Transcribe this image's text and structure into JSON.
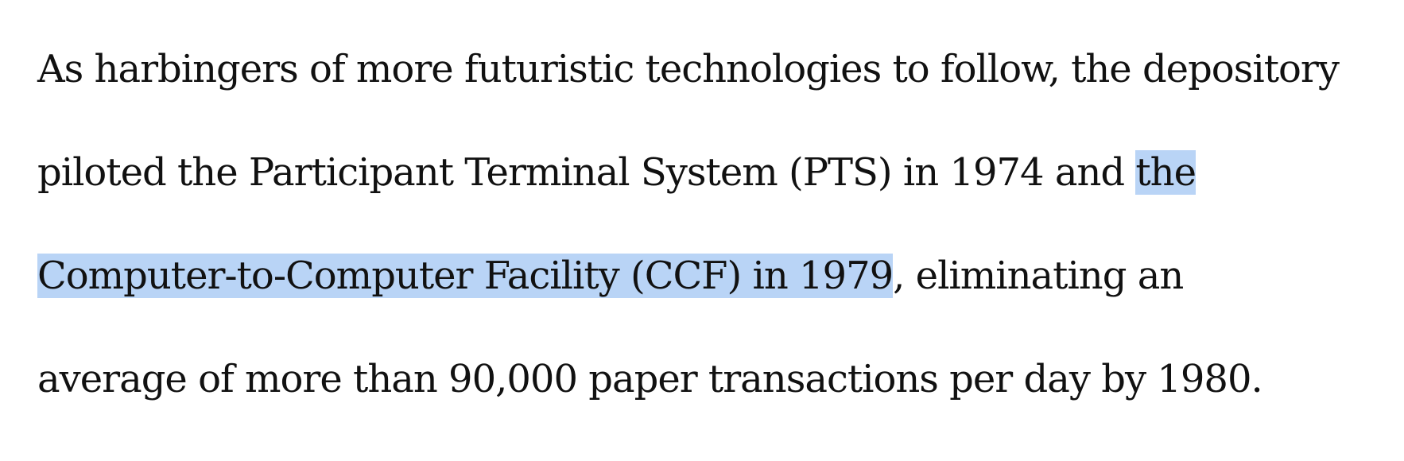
{
  "document": {
    "paragraph": {
      "line1": "As harbingers of more futuristic technologies to follow, the depository",
      "line2_plain": "piloted the Participant Terminal System (PTS) in 1974 and ",
      "line2_selected": "the",
      "line3_selected": "Computer-to-Computer Facility (CCF) in 1979",
      "line3_plain": ", eliminating an",
      "line4": "average of more than 90,000 paper transactions per day by 1980."
    },
    "selection": {
      "color": "#b9d4f6",
      "text": "the Computer-to-Computer Facility (CCF) in 1979"
    }
  }
}
